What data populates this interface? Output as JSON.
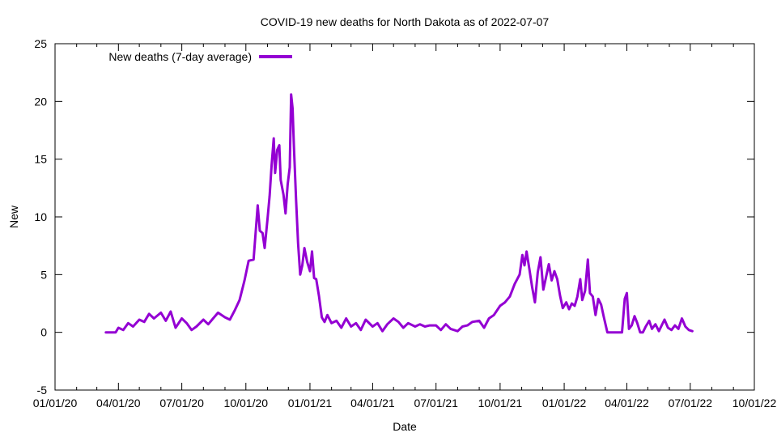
{
  "chart_data": {
    "type": "line",
    "title": "COVID-19 new deaths for North Dakota as of 2022-07-07",
    "xlabel": "Date",
    "ylabel": "New",
    "xlim": [
      "2020-01-01",
      "2022-10-01"
    ],
    "ylim": [
      -5,
      25
    ],
    "x_ticks": [
      "01/01/20",
      "04/01/20",
      "07/01/20",
      "10/01/20",
      "01/01/21",
      "04/01/21",
      "07/01/21",
      "10/01/21",
      "01/01/22",
      "04/01/22",
      "07/01/22",
      "10/01/22"
    ],
    "y_ticks": [
      "-5",
      "0",
      "5",
      "10",
      "15",
      "20",
      "25"
    ],
    "grid": false,
    "legend_position": "top-left",
    "series": [
      {
        "name": "New deaths (7-day average)",
        "color": "#9400d3",
        "points": [
          [
            "2020-03-14",
            0
          ],
          [
            "2020-03-28",
            0
          ],
          [
            "2020-04-01",
            0.4
          ],
          [
            "2020-04-08",
            0.2
          ],
          [
            "2020-04-15",
            0.8
          ],
          [
            "2020-04-22",
            0.5
          ],
          [
            "2020-05-01",
            1.1
          ],
          [
            "2020-05-08",
            0.9
          ],
          [
            "2020-05-15",
            1.6
          ],
          [
            "2020-05-22",
            1.2
          ],
          [
            "2020-06-01",
            1.7
          ],
          [
            "2020-06-08",
            1.0
          ],
          [
            "2020-06-15",
            1.8
          ],
          [
            "2020-06-22",
            0.4
          ],
          [
            "2020-07-01",
            1.2
          ],
          [
            "2020-07-08",
            0.8
          ],
          [
            "2020-07-15",
            0.2
          ],
          [
            "2020-07-22",
            0.5
          ],
          [
            "2020-08-01",
            1.1
          ],
          [
            "2020-08-08",
            0.7
          ],
          [
            "2020-08-15",
            1.2
          ],
          [
            "2020-08-22",
            1.7
          ],
          [
            "2020-09-01",
            1.3
          ],
          [
            "2020-09-08",
            1.1
          ],
          [
            "2020-09-15",
            1.9
          ],
          [
            "2020-09-22",
            2.8
          ],
          [
            "2020-09-29",
            4.5
          ],
          [
            "2020-10-05",
            6.2
          ],
          [
            "2020-10-12",
            6.3
          ],
          [
            "2020-10-15",
            8.6
          ],
          [
            "2020-10-18",
            11.0
          ],
          [
            "2020-10-21",
            8.8
          ],
          [
            "2020-10-25",
            8.6
          ],
          [
            "2020-10-28",
            7.3
          ],
          [
            "2020-11-01",
            9.8
          ],
          [
            "2020-11-04",
            11.8
          ],
          [
            "2020-11-07",
            14.5
          ],
          [
            "2020-11-10",
            16.8
          ],
          [
            "2020-11-12",
            13.8
          ],
          [
            "2020-11-15",
            15.8
          ],
          [
            "2020-11-18",
            16.2
          ],
          [
            "2020-11-20",
            13.2
          ],
          [
            "2020-11-24",
            11.9
          ],
          [
            "2020-11-27",
            10.3
          ],
          [
            "2020-11-30",
            12.8
          ],
          [
            "2020-12-03",
            14.3
          ],
          [
            "2020-12-05",
            20.6
          ],
          [
            "2020-12-07",
            19.4
          ],
          [
            "2020-12-09",
            16.0
          ],
          [
            "2020-12-12",
            11.5
          ],
          [
            "2020-12-15",
            7.7
          ],
          [
            "2020-12-18",
            5.0
          ],
          [
            "2020-12-21",
            5.8
          ],
          [
            "2020-12-24",
            7.3
          ],
          [
            "2020-12-28",
            6.1
          ],
          [
            "2021-01-01",
            5.3
          ],
          [
            "2021-01-04",
            7.0
          ],
          [
            "2021-01-07",
            4.7
          ],
          [
            "2021-01-10",
            4.6
          ],
          [
            "2021-01-14",
            3.1
          ],
          [
            "2021-01-18",
            1.3
          ],
          [
            "2021-01-22",
            0.9
          ],
          [
            "2021-01-26",
            1.5
          ],
          [
            "2021-02-01",
            0.8
          ],
          [
            "2021-02-08",
            1.0
          ],
          [
            "2021-02-15",
            0.4
          ],
          [
            "2021-02-22",
            1.2
          ],
          [
            "2021-03-01",
            0.5
          ],
          [
            "2021-03-08",
            0.8
          ],
          [
            "2021-03-15",
            0.2
          ],
          [
            "2021-03-22",
            1.1
          ],
          [
            "2021-04-01",
            0.5
          ],
          [
            "2021-04-08",
            0.8
          ],
          [
            "2021-04-15",
            0.1
          ],
          [
            "2021-04-22",
            0.7
          ],
          [
            "2021-05-01",
            1.2
          ],
          [
            "2021-05-08",
            0.9
          ],
          [
            "2021-05-15",
            0.4
          ],
          [
            "2021-05-22",
            0.8
          ],
          [
            "2021-06-01",
            0.5
          ],
          [
            "2021-06-08",
            0.7
          ],
          [
            "2021-06-15",
            0.5
          ],
          [
            "2021-06-22",
            0.6
          ],
          [
            "2021-07-01",
            0.6
          ],
          [
            "2021-07-08",
            0.2
          ],
          [
            "2021-07-15",
            0.7
          ],
          [
            "2021-07-22",
            0.3
          ],
          [
            "2021-08-01",
            0.1
          ],
          [
            "2021-08-08",
            0.5
          ],
          [
            "2021-08-15",
            0.6
          ],
          [
            "2021-08-22",
            0.9
          ],
          [
            "2021-09-01",
            1.0
          ],
          [
            "2021-09-08",
            0.4
          ],
          [
            "2021-09-15",
            1.2
          ],
          [
            "2021-09-22",
            1.5
          ],
          [
            "2021-10-01",
            2.3
          ],
          [
            "2021-10-08",
            2.6
          ],
          [
            "2021-10-15",
            3.1
          ],
          [
            "2021-10-22",
            4.2
          ],
          [
            "2021-10-29",
            5.0
          ],
          [
            "2021-11-02",
            6.7
          ],
          [
            "2021-11-05",
            5.8
          ],
          [
            "2021-11-08",
            7.0
          ],
          [
            "2021-11-12",
            5.5
          ],
          [
            "2021-11-16",
            3.9
          ],
          [
            "2021-11-20",
            2.6
          ],
          [
            "2021-11-24",
            5.2
          ],
          [
            "2021-11-28",
            6.5
          ],
          [
            "2021-12-02",
            3.7
          ],
          [
            "2021-12-06",
            4.8
          ],
          [
            "2021-12-10",
            5.9
          ],
          [
            "2021-12-14",
            4.5
          ],
          [
            "2021-12-18",
            5.3
          ],
          [
            "2021-12-22",
            4.6
          ],
          [
            "2021-12-26",
            3.2
          ],
          [
            "2021-12-30",
            2.1
          ],
          [
            "2022-01-04",
            2.6
          ],
          [
            "2022-01-08",
            2.0
          ],
          [
            "2022-01-12",
            2.5
          ],
          [
            "2022-01-16",
            2.3
          ],
          [
            "2022-01-20",
            3.1
          ],
          [
            "2022-01-24",
            4.6
          ],
          [
            "2022-01-27",
            2.8
          ],
          [
            "2022-01-31",
            3.6
          ],
          [
            "2022-02-04",
            6.3
          ],
          [
            "2022-02-07",
            3.4
          ],
          [
            "2022-02-11",
            3.1
          ],
          [
            "2022-02-15",
            1.5
          ],
          [
            "2022-02-19",
            2.9
          ],
          [
            "2022-02-23",
            2.4
          ],
          [
            "2022-02-27",
            1.3
          ],
          [
            "2022-03-04",
            0
          ],
          [
            "2022-03-15",
            0
          ],
          [
            "2022-03-25",
            0
          ],
          [
            "2022-03-29",
            2.9
          ],
          [
            "2022-04-01",
            3.4
          ],
          [
            "2022-04-04",
            0.3
          ],
          [
            "2022-04-08",
            0.6
          ],
          [
            "2022-04-12",
            1.4
          ],
          [
            "2022-04-16",
            0.8
          ],
          [
            "2022-04-20",
            0
          ],
          [
            "2022-04-24",
            0
          ],
          [
            "2022-04-28",
            0.5
          ],
          [
            "2022-05-03",
            1.0
          ],
          [
            "2022-05-07",
            0.3
          ],
          [
            "2022-05-12",
            0.7
          ],
          [
            "2022-05-17",
            0.1
          ],
          [
            "2022-05-21",
            0.6
          ],
          [
            "2022-05-25",
            1.1
          ],
          [
            "2022-05-30",
            0.4
          ],
          [
            "2022-06-04",
            0.2
          ],
          [
            "2022-06-09",
            0.6
          ],
          [
            "2022-06-14",
            0.3
          ],
          [
            "2022-06-19",
            1.2
          ],
          [
            "2022-06-24",
            0.5
          ],
          [
            "2022-06-29",
            0.2
          ],
          [
            "2022-07-04",
            0.1
          ]
        ]
      }
    ]
  }
}
